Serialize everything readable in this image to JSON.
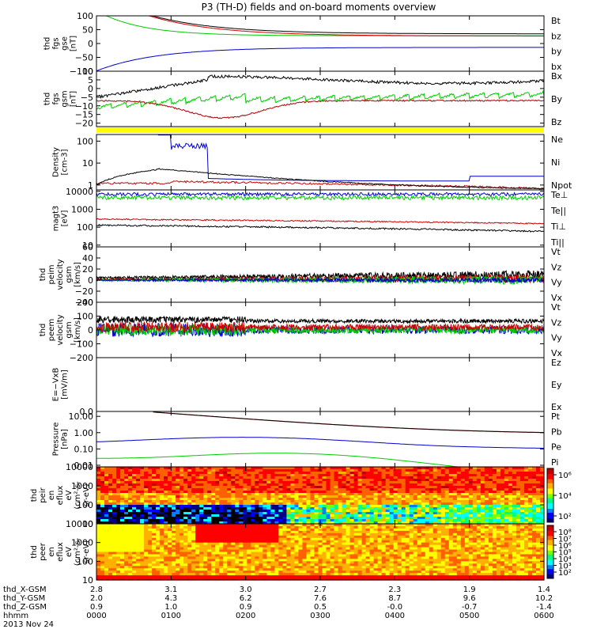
{
  "chart_data": {
    "type": "line",
    "title": "P3 (TH-D) fields and on-board moments overview",
    "date_label": "2013 Nov 24",
    "x_ticks": [
      "0000",
      "0100",
      "0200",
      "0300",
      "0400",
      "0500",
      "0600"
    ],
    "x_hours_range": [
      0,
      6
    ],
    "ephemeris": [
      {
        "label": "thd_X-GSM",
        "values": [
          "2.8",
          "3.1",
          "3.0",
          "2.7",
          "2.3",
          "1.9",
          "1.4"
        ]
      },
      {
        "label": "thd_Y-GSM",
        "values": [
          "2.0",
          "4.3",
          "6.2",
          "7.6",
          "8.7",
          "9.6",
          "10.2"
        ]
      },
      {
        "label": "thd_Z-GSM",
        "values": [
          "0.9",
          "1.0",
          "0.9",
          "0.5",
          "-0.0",
          "-0.7",
          "-1.4"
        ]
      },
      {
        "label": "hhmm",
        "values": [
          "0000",
          "0100",
          "0200",
          "0300",
          "0400",
          "0500",
          "0600"
        ]
      }
    ],
    "colorbar_ticks_ion": [
      "10²",
      "10⁴",
      "10⁶"
    ],
    "colorbar_ticks_electron": [
      "10²",
      "10³",
      "10⁴",
      "10⁵",
      "10⁶",
      "10⁷",
      "10⁸"
    ],
    "panels": [
      {
        "id": "fgs-gse",
        "ylabel": [
          "thd",
          "fgs",
          "gse",
          "[nT]"
        ],
        "yticks": [
          "100",
          "50",
          "0",
          "−50",
          "−100"
        ],
        "ylim": [
          -100,
          100
        ],
        "legend": [
          {
            "name": "Bt",
            "color": "#000000"
          },
          {
            "name": "bz",
            "color": "#cc0000"
          },
          {
            "name": "by",
            "color": "#00cc00"
          },
          {
            "name": "bx",
            "color": "#0000cc"
          }
        ]
      },
      {
        "id": "fgs-gsm",
        "ylabel": [
          "thd",
          "fgs",
          "gsm",
          "[nT]"
        ],
        "yticks": [
          "10",
          "5",
          "0",
          "−5",
          "−10",
          "−15",
          "−20"
        ],
        "ylim": [
          -22,
          10
        ],
        "legend": [
          {
            "name": "Bx",
            "color": "#000000"
          },
          {
            "name": "By",
            "color": "#00cc00"
          },
          {
            "name": "Bz",
            "color": "#aa0000"
          }
        ]
      },
      {
        "id": "mode-bar",
        "mode_color": "#ffff00"
      },
      {
        "id": "density",
        "ylabel": [
          "Density",
          "[cm-3]"
        ],
        "yticks": [
          "100",
          "10",
          "1"
        ],
        "ylim": [
          0.6,
          200
        ],
        "legend": [
          {
            "name": "Ne",
            "color": "#cc0000"
          },
          {
            "name": "Ni",
            "color": "#000000"
          },
          {
            "name": "Npot",
            "color": "#0000cc"
          }
        ]
      },
      {
        "id": "temperature",
        "ylabel": [
          "magt3",
          "[eV]"
        ],
        "yticks": [
          "10000",
          "1000",
          "100",
          "10"
        ],
        "ylim": [
          8,
          12000
        ],
        "legend": [
          {
            "name": "Te⊥",
            "color": "#cc0000"
          },
          {
            "name": "Te||",
            "color": "#000000"
          },
          {
            "name": "Ti⊥",
            "color": "#0000cc"
          },
          {
            "name": "Ti||",
            "color": "#00cc00"
          }
        ]
      },
      {
        "id": "peim-velocity",
        "ylabel": [
          "thd",
          "peim",
          "velocity",
          "gsm",
          "[km/s]"
        ],
        "yticks": [
          "60",
          "40",
          "20",
          "0",
          "−20",
          "−40"
        ],
        "ylim": [
          -40,
          60
        ],
        "legend": [
          {
            "name": "Vt",
            "color": "#000000"
          },
          {
            "name": "Vz",
            "color": "#cc0000"
          },
          {
            "name": "Vy",
            "color": "#00cc00"
          },
          {
            "name": "Vx",
            "color": "#0000cc"
          }
        ]
      },
      {
        "id": "peem-velocity",
        "ylabel": [
          "thd",
          "peem",
          "velocity",
          "gsm",
          "[km/s]"
        ],
        "yticks": [
          "200",
          "100",
          "0",
          "−100",
          "−200"
        ],
        "ylim": [
          -200,
          200
        ],
        "legend": [
          {
            "name": "Vt",
            "color": "#000000"
          },
          {
            "name": "Vz",
            "color": "#cc0000"
          },
          {
            "name": "Vy",
            "color": "#00cc00"
          },
          {
            "name": "Vx",
            "color": "#0000cc"
          }
        ]
      },
      {
        "id": "efield",
        "ylabel": [
          "E=−VxB",
          "[mV/m]"
        ],
        "yticks": [
          "0.0"
        ],
        "ylim": [
          0,
          1
        ],
        "legend": [
          {
            "name": "Ez",
            "color": "#cc0000"
          },
          {
            "name": "Ey",
            "color": "#00cc00"
          },
          {
            "name": "Ex",
            "color": "#0000cc"
          }
        ]
      },
      {
        "id": "pressure",
        "ylabel": [
          "Pressure",
          "[nPa]"
        ],
        "yticks": [
          "10.00",
          "1.00",
          "0.10",
          "0.01"
        ],
        "ylim": [
          0.008,
          20
        ],
        "legend": [
          {
            "name": "Pt",
            "color": "#000000"
          },
          {
            "name": "Pb",
            "color": "#cc0000"
          },
          {
            "name": "Pe",
            "color": "#00cc00"
          },
          {
            "name": "Pi",
            "color": "#0000cc"
          }
        ]
      },
      {
        "id": "ion-spectrogram",
        "ylabel": [
          "thd",
          "peir",
          "en",
          "eflux",
          "eV",
          "(cm²-s-",
          "sr-eV)"
        ],
        "yticks": [
          "10000",
          "1000",
          "100",
          "10"
        ]
      },
      {
        "id": "electron-spectrogram",
        "ylabel": [
          "thd",
          "peer",
          "en",
          "eflux",
          "eV",
          "(cm²-s-",
          "sr-eV)"
        ],
        "yticks": [
          "10000",
          "1000",
          "100",
          "10"
        ]
      }
    ]
  }
}
